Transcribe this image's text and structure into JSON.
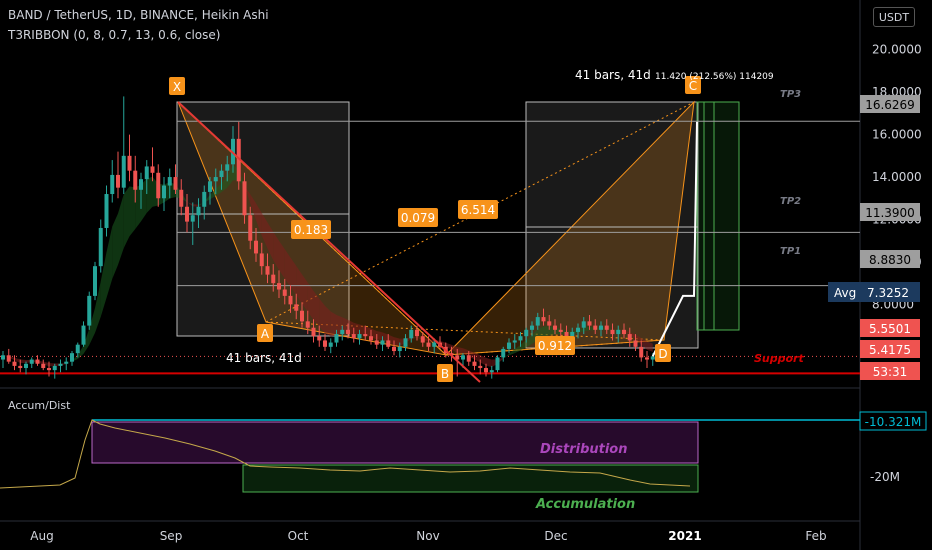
{
  "header": {
    "title": "BAND / TetherUS, 1D, BINANCE, Heikin Ashi",
    "indicator": "T3RIBBON (0, 8, 0.7, 13, 0.6, close)",
    "currency": "USDT"
  },
  "chart_data": {
    "type": "candlestick",
    "price_axis": {
      "ticks": [
        "20.0000",
        "18.0000",
        "16.0000",
        "14.0000",
        "12.0000",
        "10.0000",
        "8.0000",
        "6.0000"
      ],
      "ylim": [
        4.2,
        20.6
      ]
    },
    "time_axis": [
      "Aug",
      "Sep",
      "Oct",
      "Nov",
      "Dec",
      "2021",
      "Feb"
    ],
    "candles": [
      [
        5.4,
        5.8,
        5.0,
        5.6
      ],
      [
        5.6,
        5.9,
        5.2,
        5.3
      ],
      [
        5.3,
        5.6,
        4.9,
        5.1
      ],
      [
        5.1,
        5.4,
        4.8,
        5.0
      ],
      [
        5.0,
        5.3,
        4.7,
        5.2
      ],
      [
        5.2,
        5.5,
        5.0,
        5.4
      ],
      [
        5.4,
        5.6,
        5.1,
        5.2
      ],
      [
        5.2,
        5.4,
        4.9,
        5.0
      ],
      [
        5.0,
        5.3,
        4.6,
        4.9
      ],
      [
        4.9,
        5.2,
        4.5,
        5.1
      ],
      [
        5.1,
        5.4,
        4.8,
        5.2
      ],
      [
        5.2,
        5.5,
        4.9,
        5.3
      ],
      [
        5.3,
        5.8,
        5.1,
        5.7
      ],
      [
        5.7,
        6.2,
        5.5,
        6.1
      ],
      [
        6.1,
        7.2,
        6.0,
        7.0
      ],
      [
        7.0,
        8.6,
        6.8,
        8.4
      ],
      [
        8.4,
        10.0,
        8.2,
        9.8
      ],
      [
        9.8,
        12.0,
        9.5,
        11.6
      ],
      [
        11.6,
        13.6,
        11.2,
        13.2
      ],
      [
        13.2,
        14.8,
        12.8,
        14.1
      ],
      [
        14.1,
        15.2,
        13.0,
        13.5
      ],
      [
        13.5,
        17.8,
        13.2,
        15.0
      ],
      [
        15.0,
        16.0,
        13.8,
        14.3
      ],
      [
        14.3,
        15.0,
        12.8,
        13.4
      ],
      [
        13.4,
        14.2,
        12.5,
        13.9
      ],
      [
        13.9,
        14.8,
        13.2,
        14.5
      ],
      [
        14.5,
        15.4,
        13.8,
        14.2
      ],
      [
        14.2,
        14.6,
        12.6,
        13.0
      ],
      [
        13.0,
        14.0,
        12.4,
        13.6
      ],
      [
        13.6,
        14.4,
        13.0,
        14.0
      ],
      [
        14.0,
        14.6,
        13.2,
        13.4
      ],
      [
        13.4,
        13.9,
        12.2,
        12.6
      ],
      [
        12.6,
        13.2,
        11.4,
        11.9
      ],
      [
        11.9,
        12.8,
        10.8,
        12.2
      ],
      [
        12.2,
        13.0,
        11.6,
        12.6
      ],
      [
        12.6,
        13.6,
        12.0,
        13.3
      ],
      [
        13.3,
        14.0,
        12.7,
        13.8
      ],
      [
        13.8,
        14.4,
        13.2,
        14.0
      ],
      [
        14.0,
        14.6,
        13.4,
        14.3
      ],
      [
        14.3,
        15.0,
        13.8,
        14.6
      ],
      [
        14.6,
        16.4,
        14.2,
        15.8
      ],
      [
        15.8,
        16.6,
        13.4,
        13.8
      ],
      [
        13.8,
        14.2,
        11.8,
        12.2
      ],
      [
        12.2,
        12.6,
        10.6,
        11.0
      ],
      [
        11.0,
        11.6,
        10.0,
        10.4
      ],
      [
        10.4,
        10.9,
        9.4,
        9.8
      ],
      [
        9.8,
        10.4,
        9.0,
        9.4
      ],
      [
        9.4,
        9.9,
        8.6,
        9.0
      ],
      [
        9.0,
        9.6,
        8.3,
        8.7
      ],
      [
        8.7,
        9.2,
        8.0,
        8.4
      ],
      [
        8.4,
        8.9,
        7.6,
        8.0
      ],
      [
        8.0,
        8.5,
        7.3,
        7.7
      ],
      [
        7.7,
        8.1,
        6.9,
        7.2
      ],
      [
        7.2,
        7.7,
        6.6,
        6.9
      ],
      [
        6.9,
        7.3,
        6.2,
        6.5
      ],
      [
        6.5,
        7.0,
        6.0,
        6.3
      ],
      [
        6.3,
        6.6,
        5.8,
        6.0
      ],
      [
        6.0,
        6.4,
        5.7,
        6.2
      ],
      [
        6.2,
        6.8,
        6.0,
        6.6
      ],
      [
        6.6,
        7.0,
        6.3,
        6.8
      ],
      [
        6.8,
        7.1,
        6.4,
        6.6
      ],
      [
        6.6,
        6.9,
        6.2,
        6.4
      ],
      [
        6.4,
        6.8,
        6.1,
        6.6
      ],
      [
        6.6,
        7.0,
        6.3,
        6.5
      ],
      [
        6.5,
        6.8,
        6.1,
        6.3
      ],
      [
        6.3,
        6.6,
        5.9,
        6.1
      ],
      [
        6.1,
        6.5,
        5.8,
        6.3
      ],
      [
        6.3,
        6.6,
        5.9,
        6.0
      ],
      [
        6.0,
        6.3,
        5.6,
        5.8
      ],
      [
        5.8,
        6.2,
        5.5,
        6.0
      ],
      [
        6.0,
        6.6,
        5.8,
        6.4
      ],
      [
        6.4,
        7.0,
        6.2,
        6.8
      ],
      [
        6.8,
        7.0,
        6.3,
        6.5
      ],
      [
        6.5,
        6.7,
        6.0,
        6.2
      ],
      [
        6.2,
        6.5,
        5.8,
        6.0
      ],
      [
        6.0,
        6.4,
        5.7,
        6.2
      ],
      [
        6.2,
        6.5,
        5.9,
        6.0
      ],
      [
        6.0,
        6.2,
        5.5,
        5.7
      ],
      [
        5.7,
        6.0,
        5.3,
        5.6
      ],
      [
        5.6,
        5.9,
        4.6,
        5.4
      ],
      [
        5.4,
        5.7,
        5.0,
        5.6
      ],
      [
        5.6,
        5.8,
        5.1,
        5.3
      ],
      [
        5.3,
        5.6,
        4.9,
        5.1
      ],
      [
        5.1,
        5.4,
        4.7,
        5.0
      ],
      [
        5.0,
        5.2,
        4.6,
        4.8
      ],
      [
        4.8,
        5.1,
        4.5,
        4.9
      ],
      [
        4.9,
        5.6,
        4.8,
        5.5
      ],
      [
        5.5,
        6.0,
        5.3,
        5.9
      ],
      [
        5.9,
        6.4,
        5.7,
        6.2
      ],
      [
        6.2,
        6.6,
        5.9,
        6.3
      ],
      [
        6.3,
        6.7,
        6.0,
        6.5
      ],
      [
        6.5,
        6.9,
        6.2,
        6.8
      ],
      [
        6.8,
        7.2,
        6.5,
        7.0
      ],
      [
        7.0,
        7.6,
        6.8,
        7.4
      ],
      [
        7.4,
        7.8,
        7.0,
        7.2
      ],
      [
        7.2,
        7.5,
        6.8,
        7.0
      ],
      [
        7.0,
        7.3,
        6.6,
        6.8
      ],
      [
        6.8,
        7.1,
        6.4,
        6.7
      ],
      [
        6.7,
        7.0,
        6.3,
        6.5
      ],
      [
        6.5,
        6.9,
        6.2,
        6.7
      ],
      [
        6.7,
        7.1,
        6.4,
        6.9
      ],
      [
        6.9,
        7.4,
        6.6,
        7.2
      ],
      [
        7.2,
        7.5,
        6.8,
        7.0
      ],
      [
        7.0,
        7.3,
        6.6,
        6.8
      ],
      [
        6.8,
        7.2,
        6.5,
        7.0
      ],
      [
        7.0,
        7.3,
        6.6,
        6.8
      ],
      [
        6.8,
        7.1,
        6.3,
        6.6
      ],
      [
        6.6,
        7.0,
        6.2,
        6.8
      ],
      [
        6.8,
        7.1,
        6.4,
        6.6
      ],
      [
        6.6,
        6.9,
        6.0,
        6.3
      ],
      [
        6.3,
        6.6,
        5.8,
        6.0
      ],
      [
        6.0,
        6.3,
        5.3,
        5.5
      ],
      [
        5.5,
        5.8,
        5.0,
        5.4
      ],
      [
        5.4,
        5.7,
        5.1,
        5.55
      ]
    ],
    "projection": [
      [
        5.55,
        8.4
      ],
      [
        8.4,
        16.6
      ]
    ],
    "pattern": {
      "points": [
        {
          "label": "X",
          "price": 16.63
        },
        {
          "label": "A",
          "price": 6.0
        },
        {
          "label": "B",
          "price": 4.8
        },
        {
          "label": "C",
          "price": 16.63
        },
        {
          "label": "D",
          "price": 5.3
        }
      ],
      "ratios": [
        "0.183",
        "0.079",
        "6.514",
        "0.912"
      ]
    },
    "levels": [
      {
        "name": "TP3",
        "price": 16.6269,
        "label": "16.6269"
      },
      {
        "name": "TP2",
        "price": 11.39,
        "label": "11.3900"
      },
      {
        "name": "TP1",
        "price": 8.883,
        "label": "8.8830"
      },
      {
        "name": "Support",
        "price": 4.75,
        "label": "53:31"
      }
    ],
    "price_tags": {
      "avg_label": "Avg",
      "avg": "7.3252",
      "last": "5.5501",
      "prev": "5.4175"
    },
    "annotations": {
      "bars_left": "41 bars, 41d",
      "bars_right": "41 bars, 41d",
      "measure": "11.420 (212.56%) 114209"
    },
    "indicator": {
      "name": "Accum/Dist",
      "value_tag": "-10.321M",
      "axis_label": "-20M",
      "zones": [
        "Distribution",
        "Accumulation"
      ]
    },
    "colors": {
      "up": "#26a69a",
      "down": "#ef5350",
      "orange": "#f7931a",
      "tp_line": "#9e9e9e",
      "support": "#d50000",
      "distribution": "#9c27b0",
      "accumulation": "#4caf50",
      "adline": "#c5a84a",
      "cyan": "#00bcd4",
      "avg_bg": "#1c3a5e"
    }
  }
}
